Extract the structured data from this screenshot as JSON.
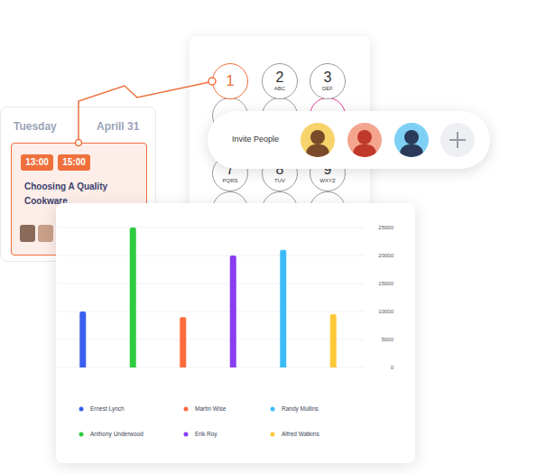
{
  "calendar": {
    "day": "Tuesday",
    "date": "Aprill 31",
    "event": {
      "start": "13:00",
      "end": "15:00",
      "title": "Choosing A Quality Cookware"
    }
  },
  "dialpad": {
    "keys": [
      {
        "digit": "1"
      },
      {
        "digit": "2",
        "letters": "ABC"
      },
      {
        "digit": "3",
        "letters": "DEF"
      },
      {
        "digit": "7",
        "letters": "PQRS"
      },
      {
        "digit": "8",
        "letters": "TUV"
      },
      {
        "digit": "9",
        "letters": "WXYZ"
      }
    ]
  },
  "invite": {
    "label": "Invite People"
  },
  "chart_data": {
    "type": "bar",
    "categories": [
      "Ernest Lynch",
      "Anthony Underwood",
      "Martin Wise",
      "Erik Roy",
      "Randy Mullins",
      "Alfred Watkins"
    ],
    "values": [
      10000,
      25000,
      9000,
      20000,
      21000,
      9500
    ],
    "colors": [
      "#3a5ff0",
      "#2ecc40",
      "#ff6b3d",
      "#8a3cf0",
      "#3cbcf7",
      "#ffc83a"
    ],
    "ylim": [
      0,
      25000
    ],
    "yticks": [
      0,
      5000,
      10000,
      15000,
      20000,
      25000
    ],
    "grid": true,
    "legend": "bottom",
    "tick_labels": "y"
  }
}
